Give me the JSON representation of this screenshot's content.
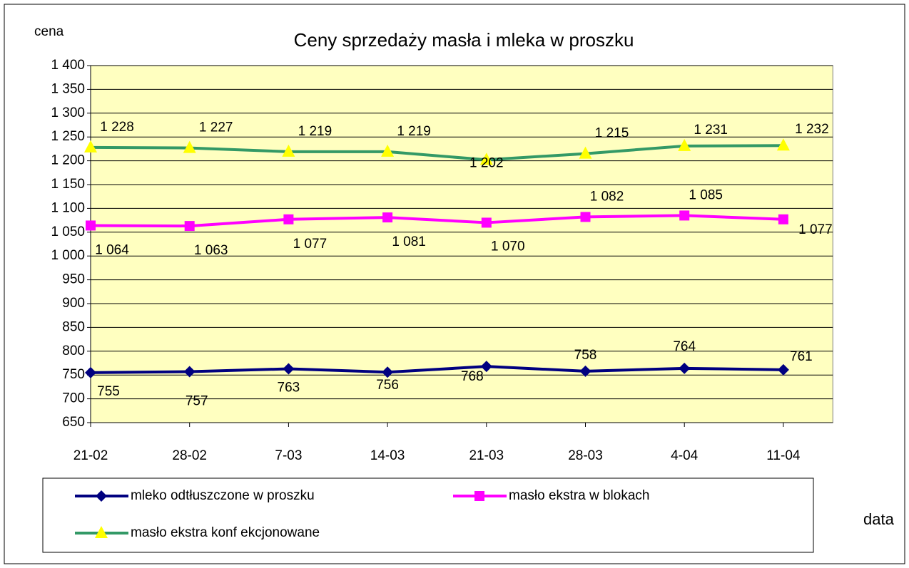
{
  "chart_data": {
    "type": "line",
    "title": "Ceny sprzedaży masła i mleka w proszku",
    "ylabel": "cena",
    "xlabel": "data",
    "categories": [
      "21-02",
      "28-02",
      "7-03",
      "14-03",
      "21-03",
      "28-03",
      "4-04",
      "11-04"
    ],
    "series": [
      {
        "name": "mleko odtłuszczone w proszku",
        "color": "#000080",
        "marker": "diamond",
        "values": [
          755,
          757,
          763,
          756,
          768,
          758,
          764,
          761
        ]
      },
      {
        "name": "masło ekstra w blokach",
        "color": "#ff00ff",
        "marker": "square",
        "values": [
          1064,
          1063,
          1077,
          1081,
          1070,
          1082,
          1085,
          1077
        ],
        "value_labels": [
          "1 064",
          "1 063",
          "1 077",
          "1 081",
          "1 070",
          "1 082",
          "1 085",
          "1 077"
        ]
      },
      {
        "name": "masło ekstra konf ekcjonowane",
        "color": "#339966",
        "marker": "triangle",
        "marker_color": "#ffff00",
        "values": [
          1228,
          1227,
          1219,
          1219,
          1202,
          1215,
          1231,
          1232
        ],
        "value_labels": [
          "1 228",
          "1 227",
          "1 219",
          "1 219",
          "1 202",
          "1 215",
          "1 231",
          "1 232"
        ]
      }
    ],
    "ylim": [
      650,
      1400
    ],
    "yticks": [
      650,
      700,
      750,
      800,
      850,
      900,
      950,
      {
        "value": 1000,
        "label": "1 000"
      },
      {
        "value": 1050,
        "label": "1 050"
      },
      {
        "value": 1100,
        "label": "1 100"
      },
      {
        "value": 1150,
        "label": "1 150"
      },
      {
        "value": 1200,
        "label": "1 200"
      },
      {
        "value": 1250,
        "label": "1 250"
      },
      {
        "value": 1300,
        "label": "1 300"
      },
      {
        "value": 1350,
        "label": "1 350"
      },
      {
        "value": 1400,
        "label": "1 400"
      }
    ],
    "grid": true,
    "plot_background": "#ffffc0",
    "legend": "bottom"
  }
}
